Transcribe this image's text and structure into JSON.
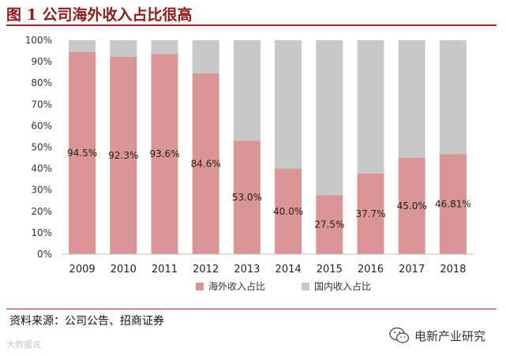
{
  "header": {
    "title": "图 1  公司海外收入占比很高"
  },
  "chart_data": {
    "type": "bar",
    "stacked": true,
    "title": "图 1  公司海外收入占比很高",
    "categories": [
      "2009",
      "2010",
      "2011",
      "2012",
      "2013",
      "2014",
      "2015",
      "2016",
      "2017",
      "2018"
    ],
    "series": [
      {
        "name": "海外收入占比",
        "values": [
          94.5,
          92.3,
          93.6,
          84.6,
          53.0,
          40.0,
          27.5,
          37.7,
          45.0,
          46.81
        ]
      },
      {
        "name": "国内收入占比",
        "values": [
          5.5,
          7.7,
          6.4,
          15.4,
          47.0,
          60.0,
          72.5,
          62.3,
          55.0,
          53.19
        ]
      }
    ],
    "data_labels": [
      "94.5%",
      "92.3%",
      "93.6%",
      "84.6%",
      "53.0%",
      "40.0%",
      "27.5%",
      "37.7%",
      "45.0%",
      "46.81%"
    ],
    "y_ticks": [
      "0%",
      "10%",
      "20%",
      "30%",
      "40%",
      "50%",
      "60%",
      "70%",
      "80%",
      "90%",
      "100%"
    ],
    "ylim": [
      0,
      100
    ],
    "xlabel": "",
    "ylabel": "",
    "legend_position": "bottom",
    "colors": {
      "overseas": "#d99694",
      "domestic": "#c8c8c8"
    }
  },
  "footer": {
    "source": "资料来源：公司公告、招商证券",
    "watermark_left": "大数据说",
    "watermark_right": "电新产业研究"
  }
}
